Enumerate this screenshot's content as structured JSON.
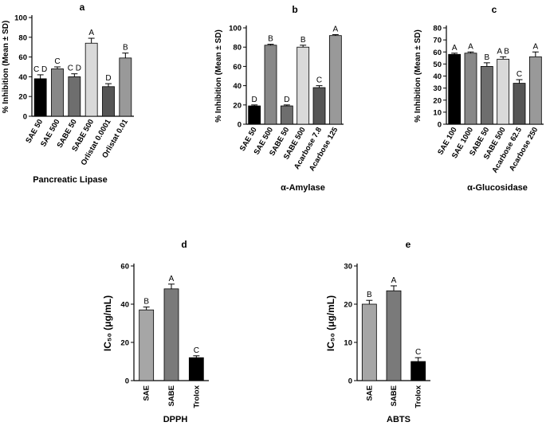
{
  "chart_data": [
    {
      "type": "bar",
      "panel": "a",
      "ylabel": "% Inhibition (Mean ± SD)",
      "xlabel": "Pancreatic Lipase",
      "ylim": [
        0,
        100
      ],
      "yticks": [
        0,
        20,
        40,
        60,
        80,
        100
      ],
      "categories": [
        "SAE 50",
        "SAE 500",
        "SABE 50",
        "SABE 500",
        "Orlistat 0.0001",
        "Orlistat 0.01"
      ],
      "values": [
        38,
        48,
        40,
        74,
        30,
        59
      ],
      "errors": [
        4,
        2,
        3,
        5,
        3,
        5
      ],
      "significance": [
        "C D",
        "C",
        "C D",
        "A",
        "D",
        "B"
      ],
      "colors": [
        "#000000",
        "#888888",
        "#6e6e6e",
        "#d9d9d9",
        "#555555",
        "#999999"
      ]
    },
    {
      "type": "bar",
      "panel": "b",
      "ylabel": "% Inhibition (Mean ± SD)",
      "xlabel": "α-Amylase",
      "ylim": [
        0,
        100
      ],
      "yticks": [
        0,
        20,
        40,
        60,
        80,
        100
      ],
      "categories": [
        "SAE 50",
        "SAE 500",
        "SABE 50",
        "SABE 500",
        "Acarbose 7.8",
        "Acarbose 125"
      ],
      "values": [
        19,
        82,
        19,
        80,
        38,
        92
      ],
      "errors": [
        1,
        1,
        1,
        2,
        2,
        1
      ],
      "significance": [
        "D",
        "B",
        "D",
        "B",
        "C",
        "A"
      ],
      "colors": [
        "#000000",
        "#888888",
        "#6e6e6e",
        "#d9d9d9",
        "#555555",
        "#999999"
      ]
    },
    {
      "type": "bar",
      "panel": "c",
      "ylabel": "% Inhibition (Mean ± SD)",
      "xlabel": "α-Glucosidase",
      "ylim": [
        0,
        80
      ],
      "yticks": [
        0,
        10,
        20,
        30,
        40,
        50,
        60,
        70,
        80
      ],
      "categories": [
        "SAE 100",
        "SAE 1000",
        "SABE 50",
        "SABE 500",
        "Acarbose 62.5",
        "Acarbose 250"
      ],
      "values": [
        58,
        59,
        48,
        54,
        34,
        56
      ],
      "errors": [
        1,
        1,
        3,
        2,
        3,
        4
      ],
      "significance": [
        "A",
        "A",
        "B",
        "A B",
        "C",
        "A"
      ],
      "colors": [
        "#000000",
        "#888888",
        "#6e6e6e",
        "#d9d9d9",
        "#555555",
        "#999999"
      ]
    },
    {
      "type": "bar",
      "panel": "d",
      "ylabel": "IC₅₀ (μg/mL)",
      "xlabel": "DPPH",
      "ylim": [
        0,
        60
      ],
      "yticks": [
        0,
        20,
        40,
        60
      ],
      "categories": [
        "SAE",
        "SABE",
        "Trolox"
      ],
      "values": [
        37,
        48,
        12
      ],
      "errors": [
        1.5,
        2.5,
        1
      ],
      "significance": [
        "B",
        "A",
        "C"
      ],
      "colors": [
        "#a6a6a6",
        "#7a7a7a",
        "#000000"
      ]
    },
    {
      "type": "bar",
      "panel": "e",
      "ylabel": "IC₅₀ (μg/mL)",
      "xlabel": "ABTS",
      "ylim": [
        0,
        30
      ],
      "yticks": [
        0,
        10,
        20,
        30
      ],
      "categories": [
        "SAE",
        "SABE",
        "Trolox"
      ],
      "values": [
        20,
        23.5,
        5
      ],
      "errors": [
        1,
        1.3,
        1
      ],
      "significance": [
        "B",
        "A",
        "C"
      ],
      "colors": [
        "#a6a6a6",
        "#7a7a7a",
        "#000000"
      ]
    }
  ]
}
